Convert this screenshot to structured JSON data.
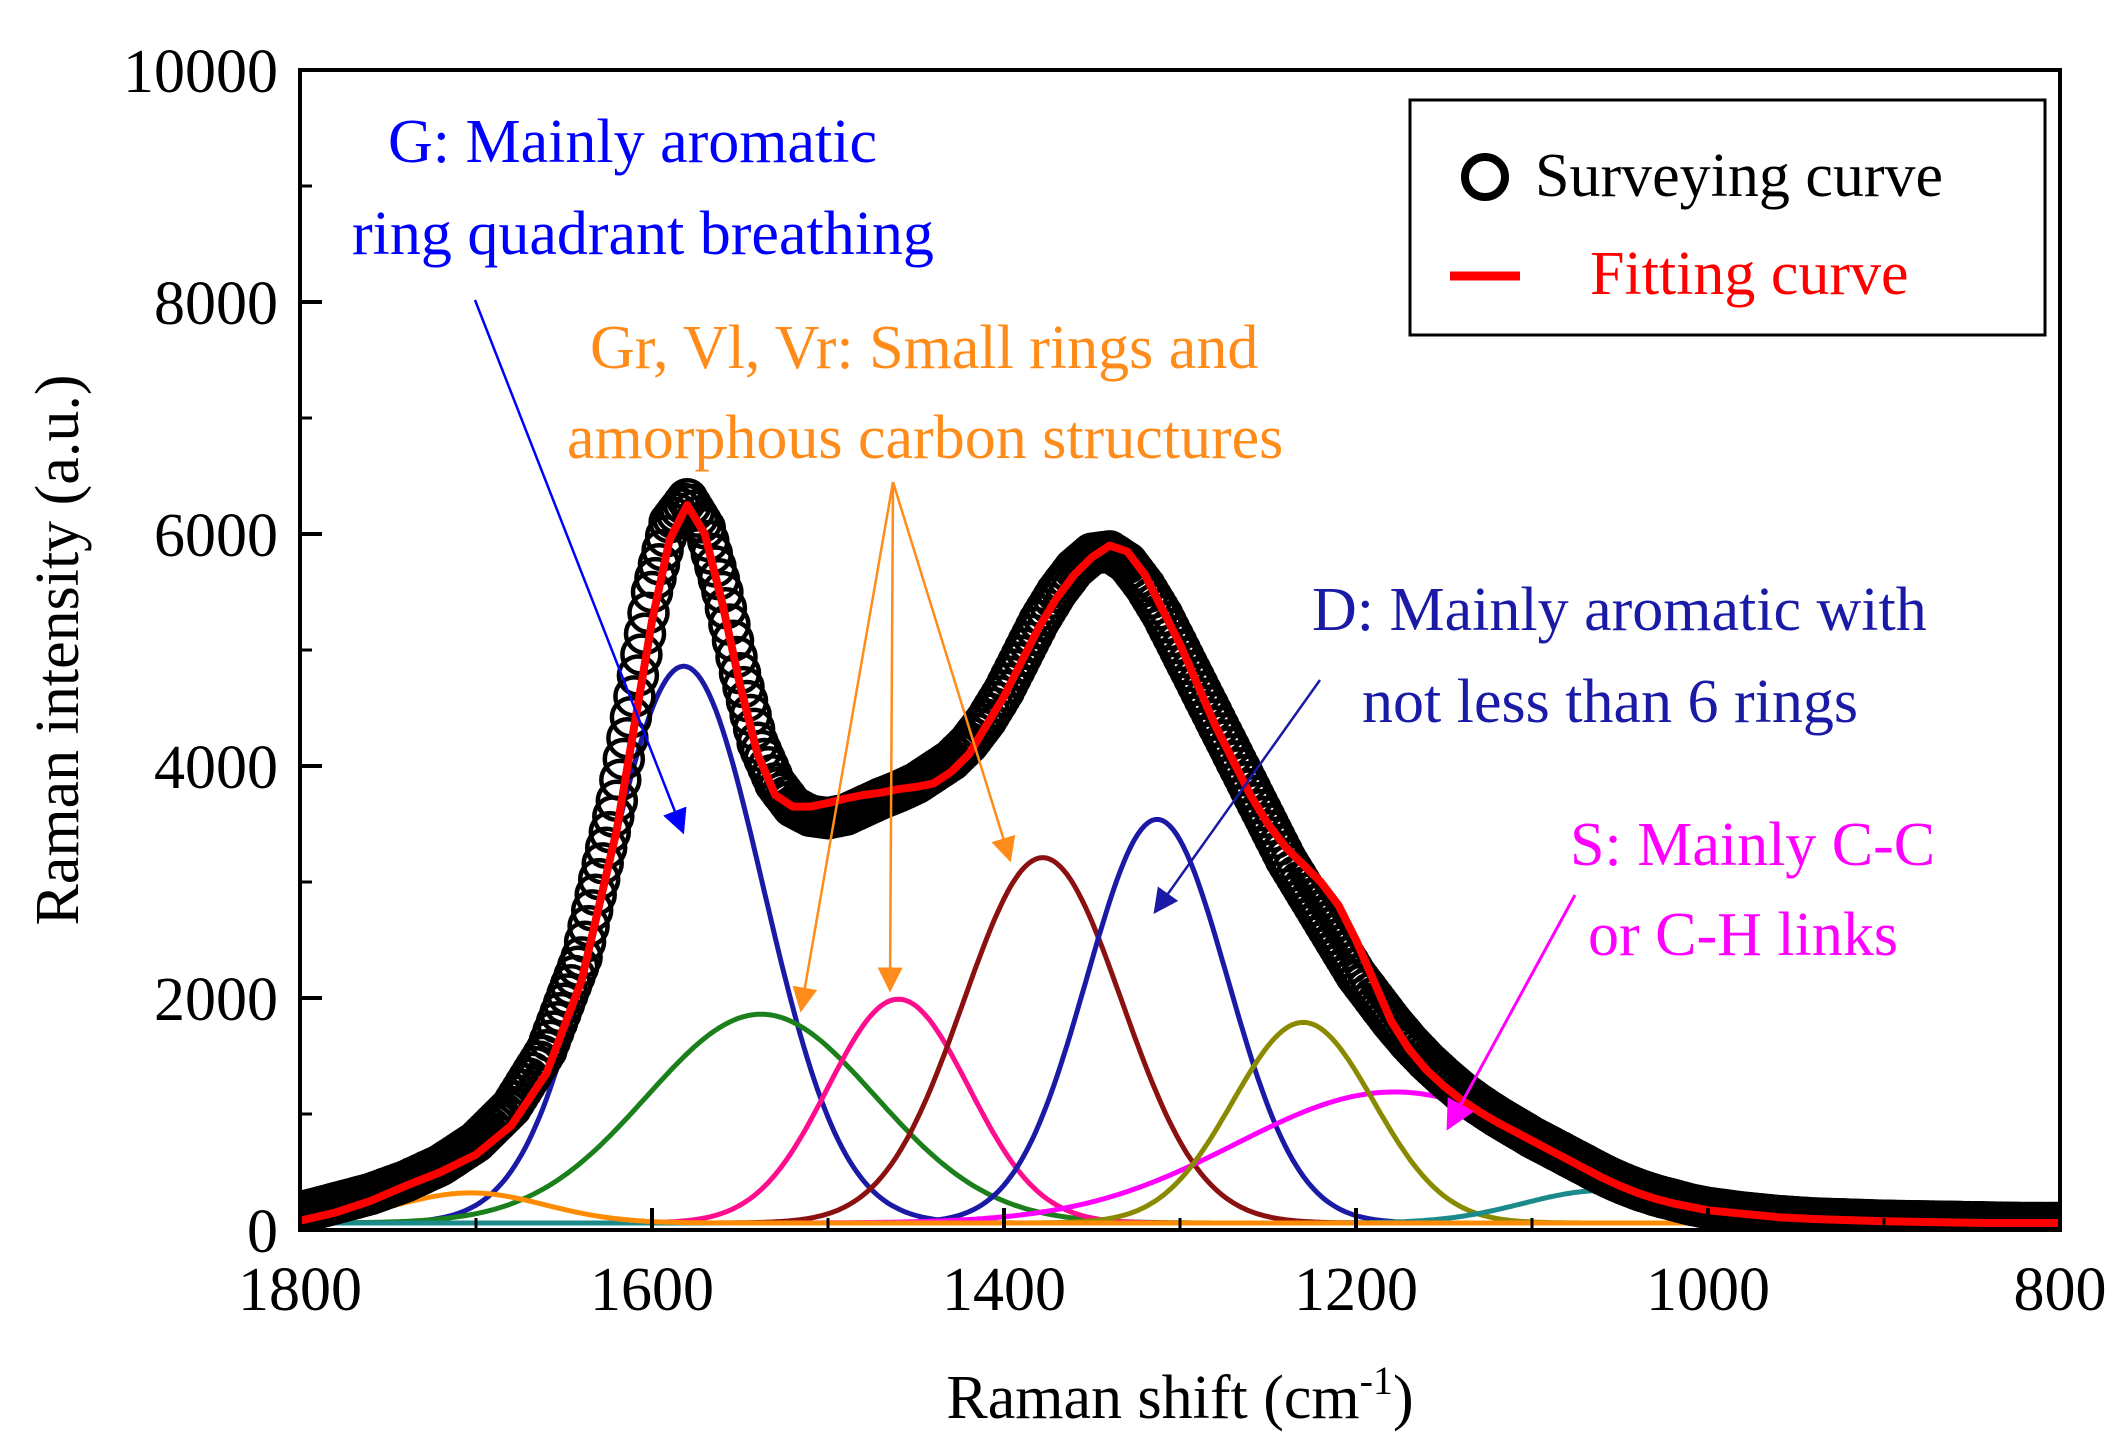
{
  "chart_data": {
    "type": "line",
    "xlabel_main": "Raman shift (cm",
    "xlabel_sup": "-1",
    "xlabel_close": ")",
    "ylabel": "Raman intensity  (a.u.)",
    "xlim": [
      1800,
      800
    ],
    "ylim": [
      0,
      10000
    ],
    "x_ticks": [
      1800,
      1600,
      1400,
      1200,
      1000,
      800
    ],
    "y_ticks": [
      0,
      2000,
      4000,
      6000,
      8000,
      10000
    ],
    "x_tick_labels": [
      "1800",
      "1600",
      "1400",
      "1200",
      "1000",
      "800"
    ],
    "y_tick_labels": [
      "0",
      "2000",
      "4000",
      "6000",
      "8000",
      "10000"
    ],
    "legend": {
      "position": "top-right",
      "entries": [
        {
          "label": "Surveying curve",
          "color": "#000000",
          "marker": "circle"
        },
        {
          "label": "Fitting curve",
          "color": "#ff0000",
          "marker": "line"
        }
      ]
    },
    "surveying_curve": {
      "name": "Surveying curve",
      "color": "#000000",
      "x": [
        1800,
        1780,
        1760,
        1740,
        1720,
        1700,
        1680,
        1660,
        1640,
        1620,
        1610,
        1600,
        1590,
        1580,
        1570,
        1560,
        1550,
        1540,
        1530,
        1520,
        1510,
        1500,
        1490,
        1480,
        1470,
        1460,
        1450,
        1440,
        1430,
        1420,
        1410,
        1400,
        1390,
        1380,
        1370,
        1360,
        1350,
        1340,
        1330,
        1320,
        1310,
        1300,
        1290,
        1280,
        1270,
        1260,
        1250,
        1240,
        1230,
        1220,
        1210,
        1200,
        1190,
        1180,
        1170,
        1160,
        1150,
        1140,
        1130,
        1120,
        1110,
        1100,
        1090,
        1080,
        1070,
        1060,
        1050,
        1040,
        1030,
        1020,
        1010,
        1000,
        980,
        960,
        940,
        920,
        900,
        880,
        860,
        840,
        820,
        800
      ],
      "y": [
        150,
        230,
        310,
        420,
        560,
        760,
        1060,
        1550,
        2350,
        3700,
        4600,
        5500,
        6100,
        6300,
        6050,
        5500,
        4800,
        4200,
        3850,
        3650,
        3570,
        3550,
        3580,
        3650,
        3720,
        3780,
        3850,
        3950,
        4050,
        4200,
        4400,
        4650,
        4950,
        5250,
        5500,
        5700,
        5830,
        5850,
        5750,
        5550,
        5300,
        5000,
        4700,
        4400,
        4100,
        3800,
        3500,
        3200,
        2950,
        2700,
        2450,
        2200,
        2000,
        1800,
        1620,
        1460,
        1320,
        1190,
        1080,
        980,
        890,
        800,
        720,
        640,
        560,
        480,
        410,
        350,
        300,
        260,
        220,
        190,
        150,
        120,
        100,
        90,
        80,
        75,
        70,
        65,
        60,
        60
      ]
    },
    "fitting_curve": {
      "name": "Fitting curve",
      "color": "#ff0000",
      "x": [
        1800,
        1780,
        1760,
        1740,
        1720,
        1700,
        1680,
        1660,
        1640,
        1620,
        1610,
        1600,
        1590,
        1580,
        1570,
        1560,
        1550,
        1540,
        1530,
        1520,
        1510,
        1500,
        1490,
        1480,
        1470,
        1460,
        1450,
        1440,
        1430,
        1420,
        1410,
        1400,
        1390,
        1380,
        1370,
        1360,
        1350,
        1340,
        1330,
        1320,
        1310,
        1300,
        1290,
        1280,
        1270,
        1260,
        1250,
        1240,
        1230,
        1220,
        1210,
        1200,
        1190,
        1180,
        1170,
        1160,
        1150,
        1140,
        1130,
        1120,
        1110,
        1100,
        1090,
        1080,
        1070,
        1060,
        1050,
        1040,
        1030,
        1020,
        1010,
        1000,
        980,
        960,
        940,
        920,
        900,
        880,
        860,
        840,
        820,
        800
      ],
      "y": [
        80,
        150,
        250,
        380,
        500,
        650,
        900,
        1350,
        2150,
        3450,
        4350,
        5250,
        5950,
        6250,
        6000,
        5400,
        4700,
        4100,
        3750,
        3650,
        3650,
        3680,
        3720,
        3750,
        3770,
        3800,
        3820,
        3850,
        3950,
        4100,
        4350,
        4600,
        4900,
        5200,
        5450,
        5650,
        5800,
        5900,
        5850,
        5650,
        5350,
        5050,
        4700,
        4350,
        4050,
        3750,
        3500,
        3300,
        3150,
        3000,
        2800,
        2500,
        2150,
        1800,
        1560,
        1380,
        1240,
        1120,
        1020,
        930,
        850,
        770,
        690,
        610,
        530,
        450,
        380,
        320,
        270,
        230,
        200,
        170,
        140,
        110,
        95,
        85,
        75,
        70,
        65,
        60,
        60,
        60
      ]
    },
    "fitted_bands": [
      {
        "name": "G",
        "color": "#1a1aa6",
        "center": 1582,
        "amplitude": 4800,
        "sigma": 45
      },
      {
        "name": "Gr",
        "color": "#1b7f1b",
        "center": 1538,
        "amplitude": 1800,
        "sigma": 65
      },
      {
        "name": "Vl",
        "color": "#ff0d8f",
        "center": 1460,
        "amplitude": 1930,
        "sigma": 40
      },
      {
        "name": "Vr",
        "color": "#8b1010",
        "center": 1378,
        "amplitude": 3150,
        "sigma": 45
      },
      {
        "name": "D",
        "color": "#1a1aa6",
        "center": 1313,
        "amplitude": 3480,
        "sigma": 40
      },
      {
        "name": "S",
        "color": "#ff00ff",
        "center": 1178,
        "amplitude": 1130,
        "sigma": 90
      },
      {
        "name": "band-1230",
        "color": "#8a8a00",
        "center": 1230,
        "amplitude": 1730,
        "sigma": 40
      },
      {
        "name": "band-1060",
        "color": "#1a8a8a",
        "center": 1060,
        "amplitude": 280,
        "sigma": 45
      },
      {
        "name": "band-1700",
        "color": "#ff8c00",
        "center": 1703,
        "amplitude": 260,
        "sigma": 42
      }
    ],
    "annotations": [
      {
        "id": "g",
        "lines": [
          "G: Mainly  aromatic",
          "ring quadrant breathing"
        ],
        "color": "#0000ff"
      },
      {
        "id": "gr",
        "lines": [
          "Gr, Vl, Vr: Small rings and",
          "amorphous carbon structures"
        ],
        "color": "#ff8c1a"
      },
      {
        "id": "d",
        "lines": [
          "D: Mainly aromatic with",
          "not less than 6 rings"
        ],
        "color": "#1a1aa6"
      },
      {
        "id": "s",
        "lines": [
          "S: Mainly C-C",
          "or C-H links"
        ],
        "color": "#ff00ff"
      }
    ]
  }
}
